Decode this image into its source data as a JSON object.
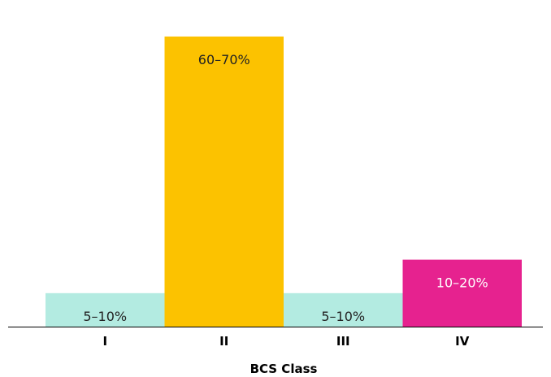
{
  "chart_data": {
    "type": "bar",
    "title": "",
    "xlabel": "BCS Class",
    "ylabel": "",
    "categories": [
      "I",
      "II",
      "III",
      "IV"
    ],
    "values": [
      7.5,
      65,
      7.5,
      15
    ],
    "value_labels": [
      "5–10%",
      "60–70%",
      "5–10%",
      "10–20%"
    ],
    "ylim": [
      0,
      71
    ],
    "grid": false,
    "legend": "none",
    "colors": [
      "#b3ebe1",
      "#fcc200",
      "#b3ebe1",
      "#e6228f"
    ],
    "label_colors": [
      "#222222",
      "#222222",
      "#222222",
      "#ffffff"
    ]
  }
}
